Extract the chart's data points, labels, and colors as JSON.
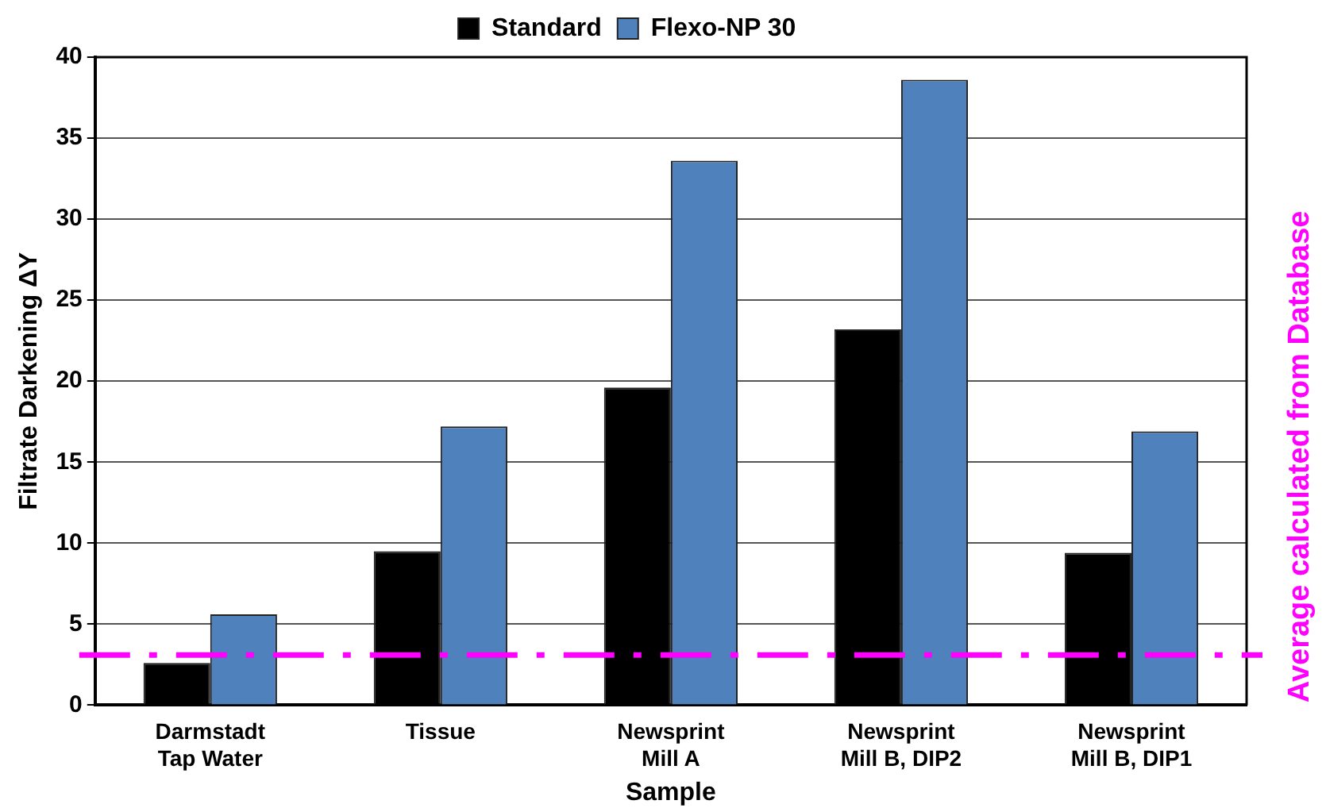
{
  "chart_data": {
    "type": "bar",
    "xlabel": "Sample",
    "ylabel": "Filtrate Darkening ΔY",
    "categories": [
      "Darmstadt\nTap Water",
      "Tissue",
      "Newsprint\nMill A",
      "Newsprint\nMill B, DIP2",
      "Newsprint\nMill B, DIP1"
    ],
    "series": [
      {
        "name": "Standard",
        "color": "#000000",
        "values": [
          2.6,
          9.5,
          19.6,
          23.2,
          9.4
        ]
      },
      {
        "name": "Flexo-NP 30",
        "color": "#4f81bd",
        "values": [
          5.6,
          17.2,
          33.6,
          38.6,
          16.9
        ]
      }
    ],
    "ylim": [
      0,
      40
    ],
    "yticks": [
      0,
      5,
      10,
      15,
      20,
      25,
      30,
      35,
      40
    ],
    "grid": "y",
    "legend": "top",
    "ref_lines": [
      {
        "axis": "y",
        "value": 3.1,
        "label": "Average calculated from Database",
        "color": "#ff00ff",
        "line_style": "dashdot"
      }
    ]
  }
}
